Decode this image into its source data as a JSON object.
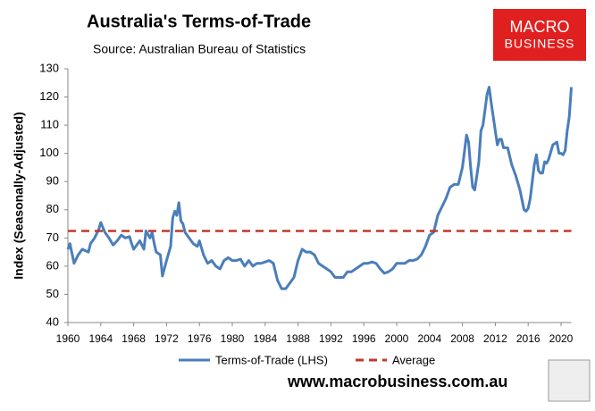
{
  "chart_data": {
    "type": "line",
    "title": "Australia's Terms-of-Trade",
    "subtitle": "Source: Australian Bureau of Statistics",
    "y_label": "Index (Seasonally-Adjusted)",
    "xlim": [
      1960,
      2021.25
    ],
    "ylim": [
      40,
      130
    ],
    "xticks": [
      1960,
      1964,
      1968,
      1972,
      1976,
      1980,
      1984,
      1988,
      1992,
      1996,
      2000,
      2004,
      2008,
      2012,
      2016,
      2020
    ],
    "yticks": [
      40,
      50,
      60,
      70,
      80,
      90,
      100,
      110,
      120,
      130
    ],
    "grid": false,
    "legend": "bottom",
    "series": [
      {
        "name": "Terms-of-Trade (LHS)",
        "color": "#4a7ebb",
        "dash": false,
        "x": [
          1960,
          1960.25,
          1960.75,
          1961.25,
          1961.75,
          1962.5,
          1962.75,
          1963.25,
          1963.75,
          1964,
          1964.5,
          1965,
          1965.5,
          1966,
          1966.5,
          1967,
          1967.5,
          1967.75,
          1968,
          1968.5,
          1968.75,
          1969.25,
          1969.5,
          1970,
          1970.25,
          1970.5,
          1970.75,
          1971.25,
          1971.5,
          1972,
          1972.5,
          1972.75,
          1973,
          1973.25,
          1973.5,
          1973.75,
          1974,
          1974.25,
          1974.75,
          1975.25,
          1975.75,
          1976,
          1976.5,
          1977,
          1977.5,
          1978,
          1978.5,
          1979,
          1979.5,
          1980,
          1980.5,
          1981,
          1981.5,
          1982,
          1982.5,
          1983,
          1983.5,
          1984,
          1984.5,
          1985,
          1985.5,
          1986,
          1986.5,
          1987,
          1987.5,
          1988,
          1988.5,
          1989,
          1989.5,
          1990,
          1990.5,
          1991,
          1991.5,
          1992,
          1992.5,
          1993,
          1993.5,
          1994,
          1994.5,
          1995,
          1995.5,
          1996,
          1996.5,
          1997,
          1997.5,
          1998,
          1998.5,
          1999,
          1999.5,
          2000,
          2000.5,
          2001,
          2001.5,
          2002,
          2002.5,
          2003,
          2003.5,
          2004,
          2004.5,
          2005,
          2005.5,
          2006,
          2006.5,
          2007,
          2007.5,
          2008,
          2008.5,
          2008.75,
          2009,
          2009.25,
          2009.5,
          2010,
          2010.25,
          2010.5,
          2011,
          2011.25,
          2011.5,
          2012,
          2012.25,
          2012.5,
          2012.75,
          2013,
          2013.5,
          2014,
          2014.5,
          2015,
          2015.5,
          2015.75,
          2016,
          2016.25,
          2016.75,
          2017,
          2017.25,
          2017.5,
          2017.75,
          2018,
          2018.25,
          2018.5,
          2019,
          2019.5,
          2019.75,
          2020,
          2020.25,
          2020.5,
          2020.75,
          2021,
          2021.25
        ],
        "values": [
          66,
          68,
          61,
          64,
          66,
          65,
          68,
          70,
          73,
          75.5,
          72,
          70,
          67.5,
          69,
          71,
          70,
          70.5,
          68,
          66,
          68,
          69,
          66,
          72.5,
          70,
          72,
          68,
          65,
          64,
          56.5,
          62,
          67,
          77,
          79.5,
          78,
          82.5,
          76,
          75,
          72,
          70,
          68,
          67,
          69,
          64,
          61,
          62,
          60,
          59,
          62,
          63,
          62,
          62,
          62.5,
          60,
          62,
          60,
          61,
          61,
          61.5,
          62,
          61,
          55,
          52,
          52,
          54,
          56,
          62,
          66,
          65,
          65,
          64,
          61,
          60,
          59,
          58,
          56,
          56,
          56,
          58,
          58,
          59,
          60,
          61,
          61,
          61.5,
          61,
          59,
          57.5,
          58,
          59,
          61,
          61,
          61,
          62,
          62,
          62.5,
          64,
          67,
          71,
          72,
          78,
          81,
          84,
          88,
          89,
          89,
          95,
          106.5,
          104,
          95,
          88,
          87,
          97,
          108,
          110,
          121,
          123.5,
          118,
          108,
          103,
          105,
          105,
          102,
          102,
          96,
          92,
          87,
          80,
          79.5,
          80.5,
          84,
          96,
          99.5,
          94,
          93,
          93,
          97,
          96.5,
          98,
          103,
          104,
          100,
          100,
          99.5,
          101,
          108,
          113,
          123.5
        ]
      },
      {
        "name": "Average",
        "color": "#c0392b",
        "dash": true,
        "x": [
          1960,
          2021.25
        ],
        "values": [
          72.5,
          72.5
        ]
      }
    ]
  },
  "branding": {
    "logo_top": "MACRO",
    "logo_bottom": "BUSINESS",
    "url": "www.macrobusiness.com.au"
  }
}
